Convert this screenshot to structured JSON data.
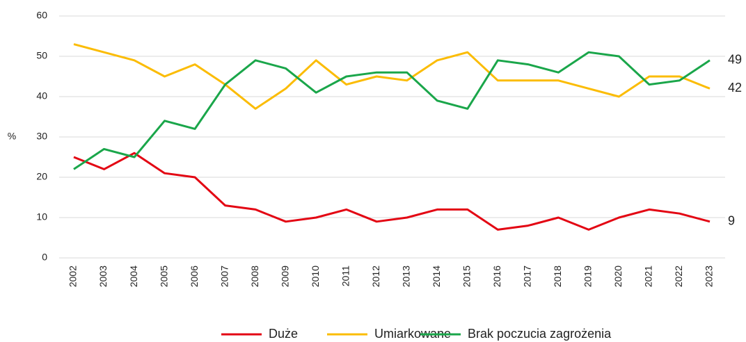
{
  "chart_data": {
    "type": "line",
    "ylabel": "%",
    "categories": [
      "2002",
      "2003",
      "2004",
      "2005",
      "2006",
      "2007",
      "2008",
      "2009",
      "2010",
      "2011",
      "2012",
      "2013",
      "2014",
      "2015",
      "2016",
      "2017",
      "2018",
      "2019",
      "2020",
      "2021",
      "2022",
      "2023"
    ],
    "series": [
      {
        "name": "Duże",
        "color": "#e30613",
        "values": [
          25,
          22,
          26,
          21,
          20,
          13,
          12,
          9,
          10,
          12,
          9,
          10,
          12,
          12,
          7,
          8,
          10,
          7,
          10,
          12,
          11,
          9
        ]
      },
      {
        "name": "Umiarkowane",
        "color": "#fbbc05",
        "values": [
          53,
          51,
          49,
          45,
          48,
          43,
          37,
          42,
          49,
          43,
          45,
          44,
          49,
          51,
          44,
          44,
          44,
          42,
          40,
          45,
          45,
          42
        ]
      },
      {
        "name": "Brak poczucia zagrożenia",
        "color": "#1aa64a",
        "values": [
          22,
          27,
          25,
          34,
          32,
          43,
          49,
          47,
          41,
          45,
          46,
          46,
          39,
          37,
          49,
          48,
          46,
          51,
          50,
          43,
          44,
          49
        ]
      }
    ],
    "ylim": [
      0,
      60
    ],
    "yticks": [
      0,
      10,
      20,
      30,
      40,
      50,
      60
    ],
    "grid": true,
    "legend": "bottom"
  }
}
